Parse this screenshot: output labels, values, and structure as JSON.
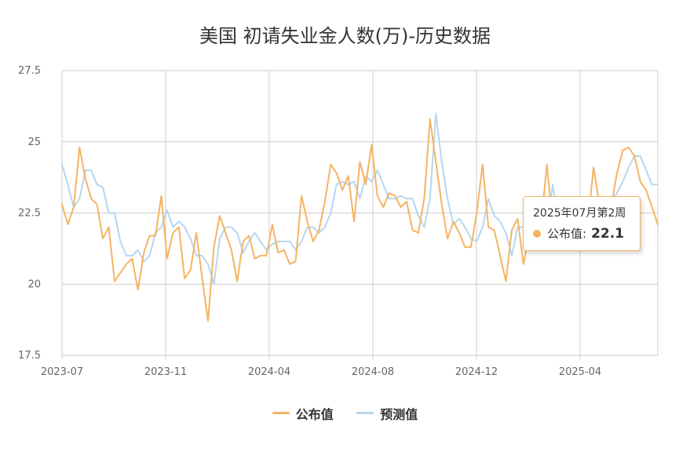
{
  "colors": {
    "published": "#f4b462",
    "forecast": "#b7d6ef",
    "grid": "#cccccc",
    "axis_text": "#666666"
  },
  "tooltip": {
    "title": "2025年07月第2周",
    "series_label": "公布值:",
    "value": "22.1"
  },
  "chart_data": {
    "type": "line",
    "title": "美国 初请失业金人数(万)-历史数据",
    "xlabel": "",
    "ylabel": "",
    "ylim": [
      17.5,
      27.5
    ],
    "yticks": [
      "17.5",
      "20",
      "22.5",
      "25",
      "27.5"
    ],
    "xticks": [
      "2023-07",
      "2023-11",
      "2024-04",
      "2024-08",
      "2024-12",
      "2025-04"
    ],
    "grid": true,
    "legend_position": "bottom-center",
    "series": [
      {
        "name": "公布值",
        "color": "#f4b462",
        "values": [
          22.8,
          22.1,
          22.7,
          24.8,
          23.7,
          23.0,
          22.8,
          21.6,
          22.0,
          20.1,
          20.4,
          20.7,
          20.9,
          19.8,
          21.1,
          21.7,
          21.7,
          23.1,
          20.9,
          21.8,
          22.0,
          20.2,
          20.5,
          21.8,
          20.2,
          18.7,
          21.3,
          22.4,
          21.8,
          21.2,
          20.1,
          21.5,
          21.7,
          20.9,
          21.0,
          21.0,
          22.1,
          21.1,
          21.2,
          20.7,
          20.8,
          23.1,
          22.2,
          21.5,
          21.9,
          22.9,
          24.2,
          23.9,
          23.3,
          23.8,
          22.2,
          24.3,
          23.5,
          24.9,
          23.1,
          22.7,
          23.2,
          23.1,
          22.7,
          22.9,
          21.9,
          21.8,
          23.0,
          25.8,
          24.3,
          22.8,
          21.6,
          22.2,
          21.8,
          21.3,
          21.3,
          22.5,
          24.2,
          22.0,
          21.9,
          21.0,
          20.1,
          21.9,
          22.3,
          20.7,
          21.8,
          21.9,
          22.0,
          24.2,
          22.1,
          22.4,
          21.9,
          22.4,
          22.3,
          22.0,
          22.1,
          24.1,
          22.8,
          22.9,
          22.7,
          23.9,
          24.7,
          24.8,
          24.5,
          23.6,
          23.3,
          22.7,
          22.1
        ]
      },
      {
        "name": "预测值",
        "color": "#b7d6ef",
        "values": [
          24.2,
          23.5,
          22.7,
          23.0,
          24.0,
          24.0,
          23.5,
          23.4,
          22.5,
          22.5,
          21.5,
          21.0,
          21.0,
          21.2,
          20.8,
          21.0,
          21.8,
          22.0,
          22.6,
          22.0,
          22.2,
          22.0,
          21.6,
          21.0,
          21.0,
          20.7,
          20.0,
          21.6,
          22.0,
          22.0,
          21.8,
          21.1,
          21.5,
          21.8,
          21.5,
          21.2,
          21.4,
          21.5,
          21.5,
          21.5,
          21.2,
          21.5,
          22.0,
          22.0,
          21.8,
          22.0,
          22.5,
          23.5,
          23.6,
          23.5,
          23.6,
          23.0,
          23.8,
          23.6,
          24.0,
          23.5,
          23.0,
          23.0,
          23.1,
          23.0,
          23.0,
          22.4,
          22.0,
          23.0,
          26.0,
          24.3,
          23.0,
          22.1,
          22.3,
          22.0,
          21.6,
          21.5,
          22.0,
          23.0,
          22.4,
          22.2,
          21.8,
          21.0,
          22.0,
          22.0,
          21.2,
          22.0,
          21.8,
          22.0,
          23.5,
          22.1,
          22.2,
          22.1,
          22.2,
          22.2,
          22.3,
          22.4,
          22.6,
          22.9,
          22.9,
          23.2,
          23.6,
          24.1,
          24.5,
          24.5,
          24.0,
          23.5,
          23.5
        ]
      }
    ]
  }
}
